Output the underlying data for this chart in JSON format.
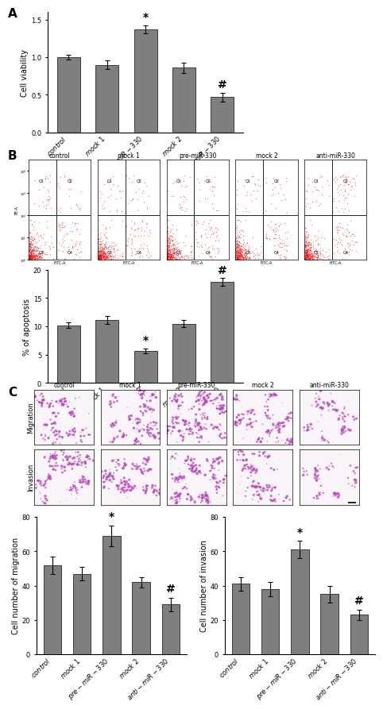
{
  "panel_A": {
    "categories": [
      "control",
      "mock 1",
      "pre-miR-330",
      "mock 2",
      "anti-miR-330"
    ],
    "values": [
      1.0,
      0.9,
      1.37,
      0.86,
      0.47
    ],
    "errors": [
      0.03,
      0.06,
      0.05,
      0.07,
      0.06
    ],
    "ylabel": "Cell viability",
    "ylim": [
      0,
      1.6
    ],
    "yticks": [
      0.0,
      0.5,
      1.0,
      1.5
    ],
    "sig_star": [
      2
    ],
    "sig_hash": [
      4
    ]
  },
  "panel_B_chart": {
    "categories": [
      "control",
      "mock 1",
      "pre-miR-330",
      "mock 2",
      "anti-miR-330"
    ],
    "values": [
      10.2,
      11.1,
      5.7,
      10.5,
      17.8
    ],
    "errors": [
      0.5,
      0.7,
      0.4,
      0.6,
      0.7
    ],
    "ylabel": "% of apoptosis",
    "ylim": [
      0,
      20
    ],
    "yticks": [
      0,
      5,
      10,
      15,
      20
    ],
    "sig_star": [
      2
    ],
    "sig_hash": [
      4
    ]
  },
  "panel_C_migration": {
    "categories": [
      "control",
      "mock 1",
      "pre-miR-330",
      "mock 2",
      "anti-miR-330"
    ],
    "values": [
      52,
      47,
      69,
      42,
      29
    ],
    "errors": [
      5,
      4,
      6,
      3,
      4
    ],
    "ylabel": "Cell number of migration",
    "ylim": [
      0,
      80
    ],
    "yticks": [
      0,
      20,
      40,
      60,
      80
    ],
    "sig_star": [
      2
    ],
    "sig_hash": [
      4
    ]
  },
  "panel_C_invasion": {
    "categories": [
      "control",
      "mock 1",
      "pre-miR-330",
      "mock 2",
      "anti-miR-330"
    ],
    "values": [
      41,
      38,
      61,
      35,
      23
    ],
    "errors": [
      4,
      4,
      5,
      5,
      3
    ],
    "ylabel": "Cell number of invasion",
    "ylim": [
      0,
      80
    ],
    "yticks": [
      0,
      20,
      40,
      60,
      80
    ],
    "sig_star": [
      2
    ],
    "sig_hash": [
      4
    ]
  },
  "fc_titles": [
    "control",
    "mock 1",
    "pre-miR-330",
    "mock 2",
    "anti-miR-330"
  ],
  "bar_color": "#7f7f7f",
  "bar_edge_color": "#3a3a3a",
  "bg_color": "#ffffff",
  "label_fontsize": 7,
  "tick_fontsize": 6,
  "panel_label_fontsize": 11,
  "sig_fontsize": 10
}
